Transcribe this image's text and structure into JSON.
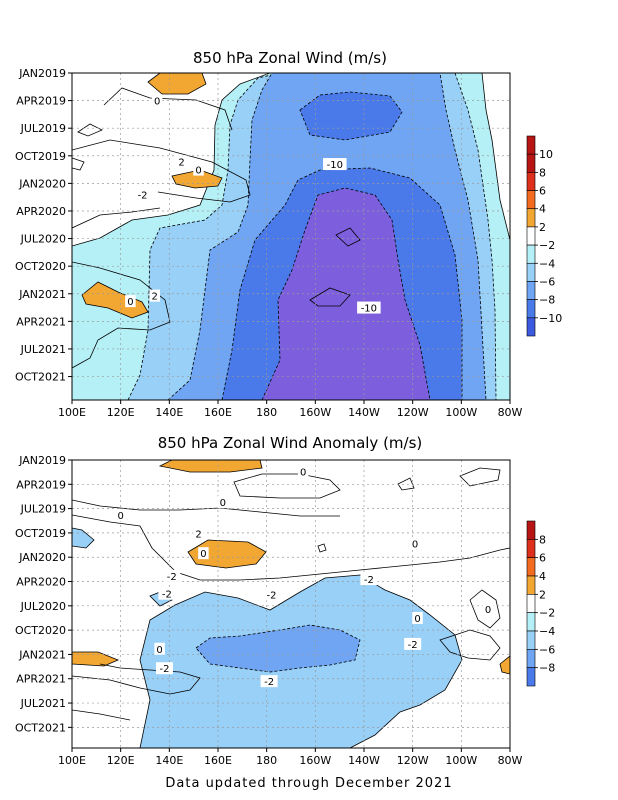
{
  "footer": "Data updated through December 2021",
  "chart_data": [
    {
      "type": "heatmap",
      "title": "850 hPa Zonal Wind (m/s)",
      "x_ticks": [
        "100E",
        "120E",
        "140E",
        "160E",
        "180",
        "160W",
        "140W",
        "120W",
        "100W",
        "80W"
      ],
      "y_ticks": [
        "JAN2019",
        "APR2019",
        "JUL2019",
        "OCT2019",
        "JAN2020",
        "APR2020",
        "JUL2020",
        "OCT2020",
        "JAN2021",
        "APR2021",
        "JUL2021",
        "OCT2021"
      ],
      "colorbar_ticks": [
        "10",
        "8",
        "6",
        "4",
        "2",
        "-2",
        "-4",
        "-6",
        "-8",
        "-10"
      ],
      "contour_labels": [
        {
          "text": "0",
          "lon": 135,
          "t": 3
        },
        {
          "text": "2",
          "lon": 145,
          "t": 9.6
        },
        {
          "text": "0",
          "lon": 152,
          "t": 10.5
        },
        {
          "text": "-2",
          "lon": 129,
          "t": 13.2
        },
        {
          "text": "-10",
          "lon": 208,
          "t": 9.9
        },
        {
          "text": "2",
          "lon": 134,
          "t": 24.2
        },
        {
          "text": "0",
          "lon": 124,
          "t": 24.8
        },
        {
          "text": "-10",
          "lon": 222,
          "t": 25.5
        }
      ]
    },
    {
      "type": "heatmap",
      "title": "850 hPa Zonal Wind Anomaly (m/s)",
      "x_ticks": [
        "100E",
        "120E",
        "140E",
        "160E",
        "180",
        "160W",
        "140W",
        "120W",
        "100W",
        "80W"
      ],
      "y_ticks": [
        "JAN2019",
        "APR2019",
        "JUL2019",
        "OCT2019",
        "JAN2020",
        "APR2020",
        "JUL2020",
        "OCT2020",
        "JAN2021",
        "APR2021",
        "JUL2021",
        "OCT2021"
      ],
      "colorbar_ticks": [
        "8",
        "6",
        "4",
        "2",
        "-2",
        "-4",
        "-6",
        "-8"
      ],
      "contour_labels": [
        {
          "text": "0",
          "lon": 195,
          "t": 1.4
        },
        {
          "text": "0",
          "lon": 162,
          "t": 5.2
        },
        {
          "text": "0",
          "lon": 120,
          "t": 6.8
        },
        {
          "text": "2",
          "lon": 152,
          "t": 9.1
        },
        {
          "text": "0",
          "lon": 154,
          "t": 11.5
        },
        {
          "text": "0",
          "lon": 241,
          "t": 10.3
        },
        {
          "text": "-2",
          "lon": 141,
          "t": 14.3
        },
        {
          "text": "-2",
          "lon": 139,
          "t": 16.5
        },
        {
          "text": "-2",
          "lon": 182,
          "t": 16.6
        },
        {
          "text": "-2",
          "lon": 222,
          "t": 14.7
        },
        {
          "text": "0",
          "lon": 242,
          "t": 19.5
        },
        {
          "text": "0",
          "lon": 271,
          "t": 18.4
        },
        {
          "text": "0",
          "lon": 136,
          "t": 23.3
        },
        {
          "text": "-2",
          "lon": 240,
          "t": 22.7
        },
        {
          "text": "-2",
          "lon": 138,
          "t": 25.7
        },
        {
          "text": "-2",
          "lon": 181,
          "t": 27.3
        }
      ]
    }
  ],
  "colors": {
    "pos": [
      "#ffffff",
      "#f2a733",
      "#f36b1e",
      "#dd2f1c",
      "#b71414"
    ],
    "neg": [
      "#ffffff",
      "#b5f0f7",
      "#99d0f7",
      "#6fa5f2",
      "#4a7aea",
      "#3c5ae0",
      "#7d5fdd"
    ]
  }
}
